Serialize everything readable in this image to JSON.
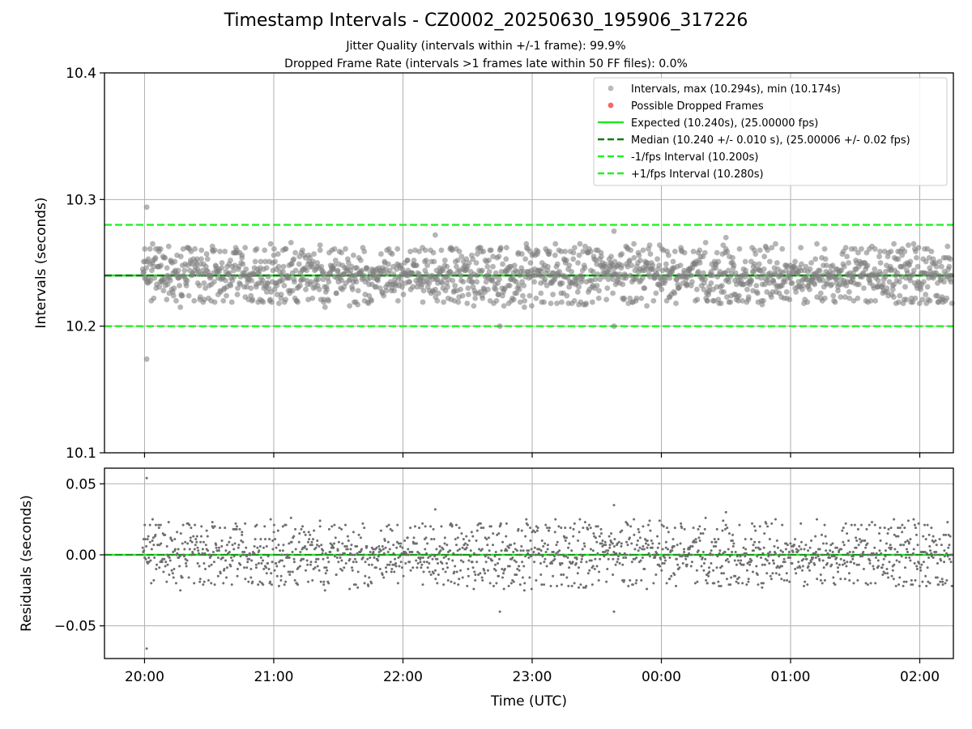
{
  "title": "Timestamp Intervals - CZ0002_20250630_195906_317226",
  "subtitle_1": "Jitter Quality (intervals within +/-1 frame): 99.9%",
  "subtitle_2": "Dropped Frame Rate (intervals >1 frames late within 50 FF files): 0.0%",
  "colors": {
    "points": "#808080",
    "dropped": "#f05a5a",
    "expected": "#22e622",
    "median": "#137a13",
    "fps_band": "#22f222",
    "grid": "#b0b0b0"
  },
  "chart_data": [
    {
      "type": "scatter",
      "ylabel": "Intervals (seconds)",
      "xlabel": "",
      "ylim": [
        10.1,
        10.4
      ],
      "yticks": [
        "10.1",
        "10.2",
        "10.3",
        "10.4"
      ],
      "xlim_hours": [
        19.69,
        26.26
      ],
      "grid": true,
      "legend_position": "top-right",
      "legend": [
        {
          "label": "Intervals, max (10.294s), min (10.174s)",
          "kind": "marker",
          "color": "#a8a8a8"
        },
        {
          "label": "Possible Dropped Frames",
          "kind": "marker",
          "color": "#f05a5a"
        },
        {
          "label": "Expected (10.240s), (25.00000 fps)",
          "kind": "line",
          "color": "#22e622"
        },
        {
          "label": "Median (10.240 +/- 0.010 s), (25.00006 +/- 0.02 fps)",
          "kind": "dashed",
          "color": "#137a13"
        },
        {
          "label": "-1/fps Interval (10.200s)",
          "kind": "dashed",
          "color": "#22f222"
        },
        {
          "label": "+1/fps Interval (10.280s)",
          "kind": "dashed",
          "color": "#22f222"
        }
      ],
      "reference_lines": {
        "expected": 10.24,
        "median": 10.24,
        "minus_fps": 10.2,
        "plus_fps": 10.28
      },
      "series": [
        {
          "name": "Intervals, max (10.294s), min (10.174s)",
          "description": "dense band of intervals centred on 10.240 s, mostly between 10.215 and 10.265 s",
          "center": 10.24,
          "typical_spread": 0.012,
          "t_start": "19:59:06",
          "t_end": "02:15:00",
          "sample_points": [
            {
              "t": "20:01",
              "y": 10.294
            },
            {
              "t": "20:01",
              "y": 10.174
            },
            {
              "t": "22:15",
              "y": 10.272
            },
            {
              "t": "22:45",
              "y": 10.2
            },
            {
              "t": "23:38",
              "y": 10.275
            },
            {
              "t": "23:38",
              "y": 10.2
            },
            {
              "t": "00:30",
              "y": 10.27
            },
            {
              "t": "01:48",
              "y": 10.265
            }
          ]
        },
        {
          "name": "Possible Dropped Frames",
          "sample_points": []
        }
      ]
    },
    {
      "type": "scatter",
      "ylabel": "Residuals (seconds)",
      "xlabel": "Time (UTC)",
      "ylim": [
        -0.073,
        0.061
      ],
      "yticks": [
        "−0.05",
        "0.00",
        "0.05"
      ],
      "xticks": [
        "20:00",
        "21:00",
        "22:00",
        "23:00",
        "00:00",
        "01:00",
        "02:00"
      ],
      "xlim_hours": [
        19.69,
        26.26
      ],
      "grid": true,
      "reference_lines": {
        "zero": 0.0
      },
      "series": [
        {
          "name": "residuals",
          "description": "residuals of intervals about the expected value, centred on 0.00 s",
          "center": 0.0,
          "typical_spread": 0.012,
          "sample_points": [
            {
              "t": "20:01",
              "y": 0.054
            },
            {
              "t": "20:01",
              "y": -0.066
            },
            {
              "t": "22:15",
              "y": 0.032
            },
            {
              "t": "22:45",
              "y": -0.04
            },
            {
              "t": "23:38",
              "y": 0.035
            },
            {
              "t": "23:38",
              "y": -0.04
            }
          ]
        }
      ]
    }
  ]
}
